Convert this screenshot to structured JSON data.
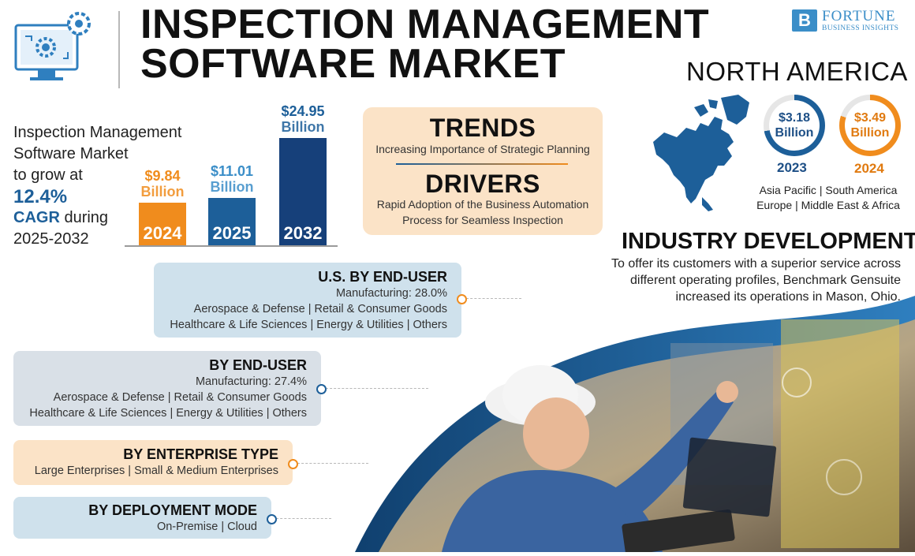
{
  "header": {
    "title_line1": "INSPECTION MANAGEMENT",
    "title_line2": "SOFTWARE MARKET",
    "brand_mark": "B",
    "brand_name": "FORTUNE",
    "brand_sub": "BUSINESS INSIGHTS"
  },
  "growth": {
    "line1": "Inspection Management",
    "line2": "Software Market",
    "line3": "to grow at",
    "rate": "12.4%",
    "cagr": "CAGR",
    "during": " during",
    "period": "2025-2032"
  },
  "chart_data": {
    "type": "bar",
    "categories": [
      "2024",
      "2025",
      "2032"
    ],
    "values": [
      9.84,
      11.01,
      24.95
    ],
    "value_labels": [
      "$9.84",
      "$11.01",
      "$24.95"
    ],
    "unit_label": "Billion",
    "colors": [
      "#f08c1d",
      "#1d5f99",
      "#16407a"
    ],
    "value_label_colors": [
      "#f08c1d",
      "#3b8ec8",
      "#1d5f99"
    ]
  },
  "trends": {
    "title": "TRENDS",
    "text": "Increasing Importance of Strategic Planning"
  },
  "drivers": {
    "title": "DRIVERS",
    "text_line1": "Rapid Adoption of the Business Automation",
    "text_line2": "Process for Seamless Inspection"
  },
  "north_america": {
    "title": "NORTH AMERICA",
    "items": [
      {
        "value": "$3.18",
        "unit": "Billion",
        "year": "2023",
        "color": "#1d5f99",
        "fill_fraction": 0.72
      },
      {
        "value": "$3.49",
        "unit": "Billion",
        "year": "2024",
        "color": "#f08c1d",
        "fill_fraction": 0.8
      }
    ],
    "regions_line1": "Asia Pacific  |  South America",
    "regions_line2": "Europe  |  Middle East & Africa"
  },
  "industry": {
    "title": "INDUSTRY DEVELOPMENT",
    "line1": "To offer its customers with a superior service across",
    "line2": "different operating profiles, Benchmark Gensuite",
    "line3": "increased its operations in Mason, Ohio."
  },
  "segments": [
    {
      "title": "U.S. BY END-USER",
      "line1": "Manufacturing: 28.0%",
      "line2": "Aerospace & Defense  |  Retail & Consumer Goods",
      "line3": "Healthcare & Life Sciences  |  Energy & Utilities  |  Others",
      "color": "#cfe1ec",
      "dot": "#f08c1d"
    },
    {
      "title": "BY END-USER",
      "line1": "Manufacturing: 27.4%",
      "line2": "Aerospace & Defense  |  Retail & Consumer Goods",
      "line3": "Healthcare & Life Sciences  |  Energy & Utilities  |  Others",
      "color": "#d9e0e7",
      "dot": "#1d5f99"
    },
    {
      "title": "BY ENTERPRISE TYPE",
      "line1": "Large Enterprises  |  Small & Medium Enterprises",
      "color": "#fbe3c7",
      "dot": "#f08c1d"
    },
    {
      "title": "BY DEPLOYMENT MODE",
      "line1": "On-Premise  |  Cloud",
      "color": "#cfe1ec",
      "dot": "#1d5f99"
    }
  ]
}
